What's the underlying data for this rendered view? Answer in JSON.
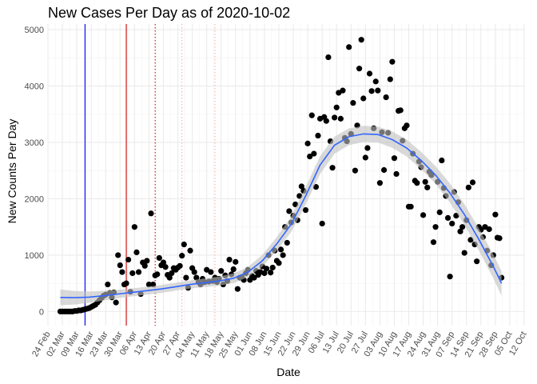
{
  "chart_data": {
    "type": "scatter",
    "title": "New Cases Per Day as of 2020-10-02",
    "xlabel": "Date",
    "ylabel": "New Counts Per Day",
    "grid": true,
    "legend": "none",
    "xlim": [
      "2020-02-24",
      "2020-10-12"
    ],
    "ylim": [
      -250,
      5100
    ],
    "y_ticks": [
      0,
      1000,
      2000,
      3000,
      4000,
      5000
    ],
    "x_ticks": [
      "2020-02-24",
      "2020-03-02",
      "2020-03-09",
      "2020-03-16",
      "2020-03-23",
      "2020-03-30",
      "2020-04-06",
      "2020-04-13",
      "2020-04-20",
      "2020-04-27",
      "2020-05-04",
      "2020-05-11",
      "2020-05-18",
      "2020-05-25",
      "2020-06-01",
      "2020-06-08",
      "2020-06-15",
      "2020-06-22",
      "2020-06-29",
      "2020-07-06",
      "2020-07-13",
      "2020-07-20",
      "2020-07-27",
      "2020-08-03",
      "2020-08-10",
      "2020-08-17",
      "2020-08-24",
      "2020-08-31",
      "2020-09-07",
      "2020-09-14",
      "2020-09-21",
      "2020-09-28",
      "2020-10-05",
      "2020-10-12"
    ],
    "x_tick_labels": [
      "24 Feb",
      "02 Mar",
      "09 Mar",
      "16 Mar",
      "23 Mar",
      "30 Mar",
      "06 Apr",
      "13 Apr",
      "20 Apr",
      "27 Apr",
      "04 May",
      "11 May",
      "18 May",
      "25 May",
      "01 Jun",
      "08 Jun",
      "15 Jun",
      "22 Jun",
      "29 Jun",
      "06 Jul",
      "13 Jul",
      "20 Jul",
      "27 Jul",
      "03 Aug",
      "10 Aug",
      "17 Aug",
      "24 Aug",
      "31 Aug",
      "07 Sep",
      "14 Sep",
      "21 Sep",
      "28 Sep",
      "05 Oct",
      "12 Oct"
    ],
    "reference_lines": [
      {
        "date": "2020-03-13",
        "color": "#0000ff",
        "style": "solid"
      },
      {
        "date": "2020-04-02",
        "color": "#cc0000",
        "style": "solid"
      },
      {
        "date": "2020-04-16",
        "color": "#cc0000",
        "style": "dotted"
      },
      {
        "date": "2020-04-29",
        "color": "#ffaaaa",
        "style": "dotted"
      },
      {
        "date": "2020-05-15",
        "color": "#ffaaaa",
        "style": "dotted"
      }
    ],
    "colors": {
      "points": "#000000",
      "smooth_line": "#3366ff",
      "ribbon": "#bfbfbf"
    },
    "points": [
      [
        "2020-03-01",
        0
      ],
      [
        "2020-03-02",
        0
      ],
      [
        "2020-03-03",
        0
      ],
      [
        "2020-03-04",
        0
      ],
      [
        "2020-03-05",
        0
      ],
      [
        "2020-03-06",
        0
      ],
      [
        "2020-03-07",
        0
      ],
      [
        "2020-03-08",
        10
      ],
      [
        "2020-03-09",
        10
      ],
      [
        "2020-03-10",
        20
      ],
      [
        "2020-03-11",
        20
      ],
      [
        "2020-03-12",
        30
      ],
      [
        "2020-03-13",
        40
      ],
      [
        "2020-03-14",
        50
      ],
      [
        "2020-03-15",
        60
      ],
      [
        "2020-03-16",
        80
      ],
      [
        "2020-03-17",
        100
      ],
      [
        "2020-03-18",
        120
      ],
      [
        "2020-03-19",
        160
      ],
      [
        "2020-03-20",
        200
      ],
      [
        "2020-03-21",
        240
      ],
      [
        "2020-03-22",
        280
      ],
      [
        "2020-03-23",
        300
      ],
      [
        "2020-03-24",
        480
      ],
      [
        "2020-03-25",
        330
      ],
      [
        "2020-03-26",
        250
      ],
      [
        "2020-03-27",
        340
      ],
      [
        "2020-03-28",
        160
      ],
      [
        "2020-03-29",
        1000
      ],
      [
        "2020-03-30",
        820
      ],
      [
        "2020-03-31",
        700
      ],
      [
        "2020-04-01",
        480
      ],
      [
        "2020-04-02",
        500
      ],
      [
        "2020-04-03",
        920
      ],
      [
        "2020-04-04",
        350
      ],
      [
        "2020-04-05",
        680
      ],
      [
        "2020-04-06",
        1500
      ],
      [
        "2020-04-07",
        1050
      ],
      [
        "2020-04-08",
        700
      ],
      [
        "2020-04-09",
        310
      ],
      [
        "2020-04-10",
        870
      ],
      [
        "2020-04-11",
        810
      ],
      [
        "2020-04-12",
        900
      ],
      [
        "2020-04-13",
        480
      ],
      [
        "2020-04-14",
        1740
      ],
      [
        "2020-04-15",
        480
      ],
      [
        "2020-04-16",
        640
      ],
      [
        "2020-04-17",
        660
      ],
      [
        "2020-04-18",
        950
      ],
      [
        "2020-04-19",
        820
      ],
      [
        "2020-04-20",
        870
      ],
      [
        "2020-04-21",
        790
      ],
      [
        "2020-04-22",
        650
      ],
      [
        "2020-04-23",
        600
      ],
      [
        "2020-04-24",
        680
      ],
      [
        "2020-04-25",
        770
      ],
      [
        "2020-04-26",
        740
      ],
      [
        "2020-04-27",
        780
      ],
      [
        "2020-04-28",
        810
      ],
      [
        "2020-04-29",
        990
      ],
      [
        "2020-04-30",
        1190
      ],
      [
        "2020-05-01",
        600
      ],
      [
        "2020-05-02",
        420
      ],
      [
        "2020-05-03",
        1080
      ],
      [
        "2020-05-04",
        770
      ],
      [
        "2020-05-05",
        700
      ],
      [
        "2020-05-06",
        600
      ],
      [
        "2020-05-07",
        520
      ],
      [
        "2020-05-08",
        480
      ],
      [
        "2020-05-09",
        580
      ],
      [
        "2020-05-10",
        520
      ],
      [
        "2020-05-11",
        740
      ],
      [
        "2020-05-12",
        530
      ],
      [
        "2020-05-13",
        700
      ],
      [
        "2020-05-14",
        540
      ],
      [
        "2020-05-15",
        600
      ],
      [
        "2020-05-16",
        520
      ],
      [
        "2020-05-17",
        580
      ],
      [
        "2020-05-18",
        720
      ],
      [
        "2020-05-19",
        480
      ],
      [
        "2020-05-20",
        640
      ],
      [
        "2020-05-21",
        540
      ],
      [
        "2020-05-22",
        920
      ],
      [
        "2020-05-23",
        660
      ],
      [
        "2020-05-24",
        750
      ],
      [
        "2020-05-25",
        880
      ],
      [
        "2020-05-26",
        400
      ],
      [
        "2020-05-27",
        600
      ],
      [
        "2020-05-28",
        610
      ],
      [
        "2020-05-29",
        560
      ],
      [
        "2020-05-30",
        680
      ],
      [
        "2020-05-31",
        740
      ],
      [
        "2020-06-01",
        560
      ],
      [
        "2020-06-02",
        630
      ],
      [
        "2020-06-03",
        600
      ],
      [
        "2020-06-04",
        720
      ],
      [
        "2020-06-05",
        650
      ],
      [
        "2020-06-06",
        700
      ],
      [
        "2020-06-07",
        800
      ],
      [
        "2020-06-08",
        680
      ],
      [
        "2020-06-09",
        760
      ],
      [
        "2020-06-10",
        1000
      ],
      [
        "2020-06-11",
        690
      ],
      [
        "2020-06-12",
        780
      ],
      [
        "2020-06-13",
        1080
      ],
      [
        "2020-06-14",
        900
      ],
      [
        "2020-06-15",
        860
      ],
      [
        "2020-06-16",
        1100
      ],
      [
        "2020-06-17",
        1000
      ],
      [
        "2020-06-18",
        1500
      ],
      [
        "2020-06-19",
        1220
      ],
      [
        "2020-06-20",
        1780
      ],
      [
        "2020-06-21",
        1580
      ],
      [
        "2020-06-22",
        1700
      ],
      [
        "2020-06-23",
        1900
      ],
      [
        "2020-06-24",
        1620
      ],
      [
        "2020-06-25",
        2050
      ],
      [
        "2020-06-26",
        2220
      ],
      [
        "2020-06-27",
        2140
      ],
      [
        "2020-06-28",
        1800
      ],
      [
        "2020-06-29",
        2980
      ],
      [
        "2020-06-30",
        2750
      ],
      [
        "2020-07-01",
        3480
      ],
      [
        "2020-07-02",
        2800
      ],
      [
        "2020-07-03",
        2210
      ],
      [
        "2020-07-04",
        3120
      ],
      [
        "2020-07-05",
        3420
      ],
      [
        "2020-07-06",
        1560
      ],
      [
        "2020-07-07",
        3450
      ],
      [
        "2020-07-08",
        3380
      ],
      [
        "2020-07-09",
        4510
      ],
      [
        "2020-07-10",
        3020
      ],
      [
        "2020-07-11",
        2550
      ],
      [
        "2020-07-12",
        3440
      ],
      [
        "2020-07-13",
        3620
      ],
      [
        "2020-07-14",
        3880
      ],
      [
        "2020-07-15",
        3420
      ],
      [
        "2020-07-16",
        3920
      ],
      [
        "2020-07-17",
        3080
      ],
      [
        "2020-07-18",
        3020
      ],
      [
        "2020-07-19",
        4690
      ],
      [
        "2020-07-20",
        3150
      ],
      [
        "2020-07-21",
        3700
      ],
      [
        "2020-07-22",
        2500
      ],
      [
        "2020-07-23",
        3300
      ],
      [
        "2020-07-24",
        4310
      ],
      [
        "2020-07-25",
        4820
      ],
      [
        "2020-07-26",
        3780
      ],
      [
        "2020-07-27",
        2730
      ],
      [
        "2020-07-28",
        2900
      ],
      [
        "2020-07-29",
        4220
      ],
      [
        "2020-07-30",
        3910
      ],
      [
        "2020-07-31",
        3250
      ],
      [
        "2020-08-01",
        4080
      ],
      [
        "2020-08-02",
        3920
      ],
      [
        "2020-08-03",
        2280
      ],
      [
        "2020-08-04",
        3180
      ],
      [
        "2020-08-05",
        2510
      ],
      [
        "2020-08-06",
        3800
      ],
      [
        "2020-08-07",
        3170
      ],
      [
        "2020-08-08",
        4120
      ],
      [
        "2020-08-09",
        4430
      ],
      [
        "2020-08-10",
        2720
      ],
      [
        "2020-08-11",
        2440
      ],
      [
        "2020-08-12",
        3560
      ],
      [
        "2020-08-13",
        3570
      ],
      [
        "2020-08-14",
        3030
      ],
      [
        "2020-08-15",
        3250
      ],
      [
        "2020-08-16",
        3300
      ],
      [
        "2020-08-17",
        1860
      ],
      [
        "2020-08-18",
        1860
      ],
      [
        "2020-08-19",
        2800
      ],
      [
        "2020-08-20",
        2320
      ],
      [
        "2020-08-21",
        2280
      ],
      [
        "2020-08-22",
        2660
      ],
      [
        "2020-08-23",
        2560
      ],
      [
        "2020-08-24",
        1710
      ],
      [
        "2020-08-25",
        2300
      ],
      [
        "2020-08-26",
        2200
      ],
      [
        "2020-08-27",
        2480
      ],
      [
        "2020-08-28",
        2420
      ],
      [
        "2020-08-29",
        1230
      ],
      [
        "2020-08-30",
        1500
      ],
      [
        "2020-08-31",
        2300
      ],
      [
        "2020-09-01",
        1760
      ],
      [
        "2020-09-02",
        2680
      ],
      [
        "2020-09-03",
        2190
      ],
      [
        "2020-09-04",
        2050
      ],
      [
        "2020-09-05",
        1660
      ],
      [
        "2020-09-06",
        620
      ],
      [
        "2020-09-07",
        1560
      ],
      [
        "2020-09-08",
        2120
      ],
      [
        "2020-09-09",
        1700
      ],
      [
        "2020-09-10",
        1940
      ],
      [
        "2020-09-11",
        1420
      ],
      [
        "2020-09-12",
        1500
      ],
      [
        "2020-09-13",
        1040
      ],
      [
        "2020-09-14",
        1620
      ],
      [
        "2020-09-15",
        2200
      ],
      [
        "2020-09-16",
        1270
      ],
      [
        "2020-09-17",
        2290
      ],
      [
        "2020-09-18",
        1190
      ],
      [
        "2020-09-19",
        890
      ],
      [
        "2020-09-20",
        1500
      ],
      [
        "2020-09-21",
        1450
      ],
      [
        "2020-09-22",
        1320
      ],
      [
        "2020-09-23",
        1500
      ],
      [
        "2020-09-24",
        1080
      ],
      [
        "2020-09-25",
        1460
      ],
      [
        "2020-09-26",
        820
      ],
      [
        "2020-09-27",
        1000
      ],
      [
        "2020-09-28",
        1720
      ],
      [
        "2020-09-29",
        1310
      ],
      [
        "2020-09-30",
        1300
      ],
      [
        "2020-10-01",
        600
      ]
    ],
    "smooth_line": [
      [
        "2020-03-01",
        250
      ],
      [
        "2020-03-08",
        245
      ],
      [
        "2020-03-15",
        255
      ],
      [
        "2020-03-22",
        280
      ],
      [
        "2020-03-29",
        310
      ],
      [
        "2020-04-05",
        340
      ],
      [
        "2020-04-12",
        370
      ],
      [
        "2020-04-19",
        400
      ],
      [
        "2020-04-26",
        440
      ],
      [
        "2020-05-03",
        480
      ],
      [
        "2020-05-10",
        510
      ],
      [
        "2020-05-17",
        540
      ],
      [
        "2020-05-24",
        590
      ],
      [
        "2020-05-31",
        700
      ],
      [
        "2020-06-07",
        900
      ],
      [
        "2020-06-14",
        1200
      ],
      [
        "2020-06-21",
        1550
      ],
      [
        "2020-06-28",
        2050
      ],
      [
        "2020-07-05",
        2600
      ],
      [
        "2020-07-12",
        2950
      ],
      [
        "2020-07-19",
        3100
      ],
      [
        "2020-07-26",
        3150
      ],
      [
        "2020-08-02",
        3140
      ],
      [
        "2020-08-09",
        3050
      ],
      [
        "2020-08-16",
        2900
      ],
      [
        "2020-08-23",
        2680
      ],
      [
        "2020-08-30",
        2420
      ],
      [
        "2020-09-06",
        2100
      ],
      [
        "2020-09-13",
        1720
      ],
      [
        "2020-09-20",
        1280
      ],
      [
        "2020-09-27",
        800
      ],
      [
        "2020-10-01",
        500
      ]
    ],
    "ribbon_halfwidth": [
      [
        "2020-03-01",
        140
      ],
      [
        "2020-03-15",
        100
      ],
      [
        "2020-04-01",
        70
      ],
      [
        "2020-05-01",
        70
      ],
      [
        "2020-06-01",
        90
      ],
      [
        "2020-07-01",
        160
      ],
      [
        "2020-08-01",
        140
      ],
      [
        "2020-09-01",
        160
      ],
      [
        "2020-10-01",
        220
      ]
    ]
  }
}
